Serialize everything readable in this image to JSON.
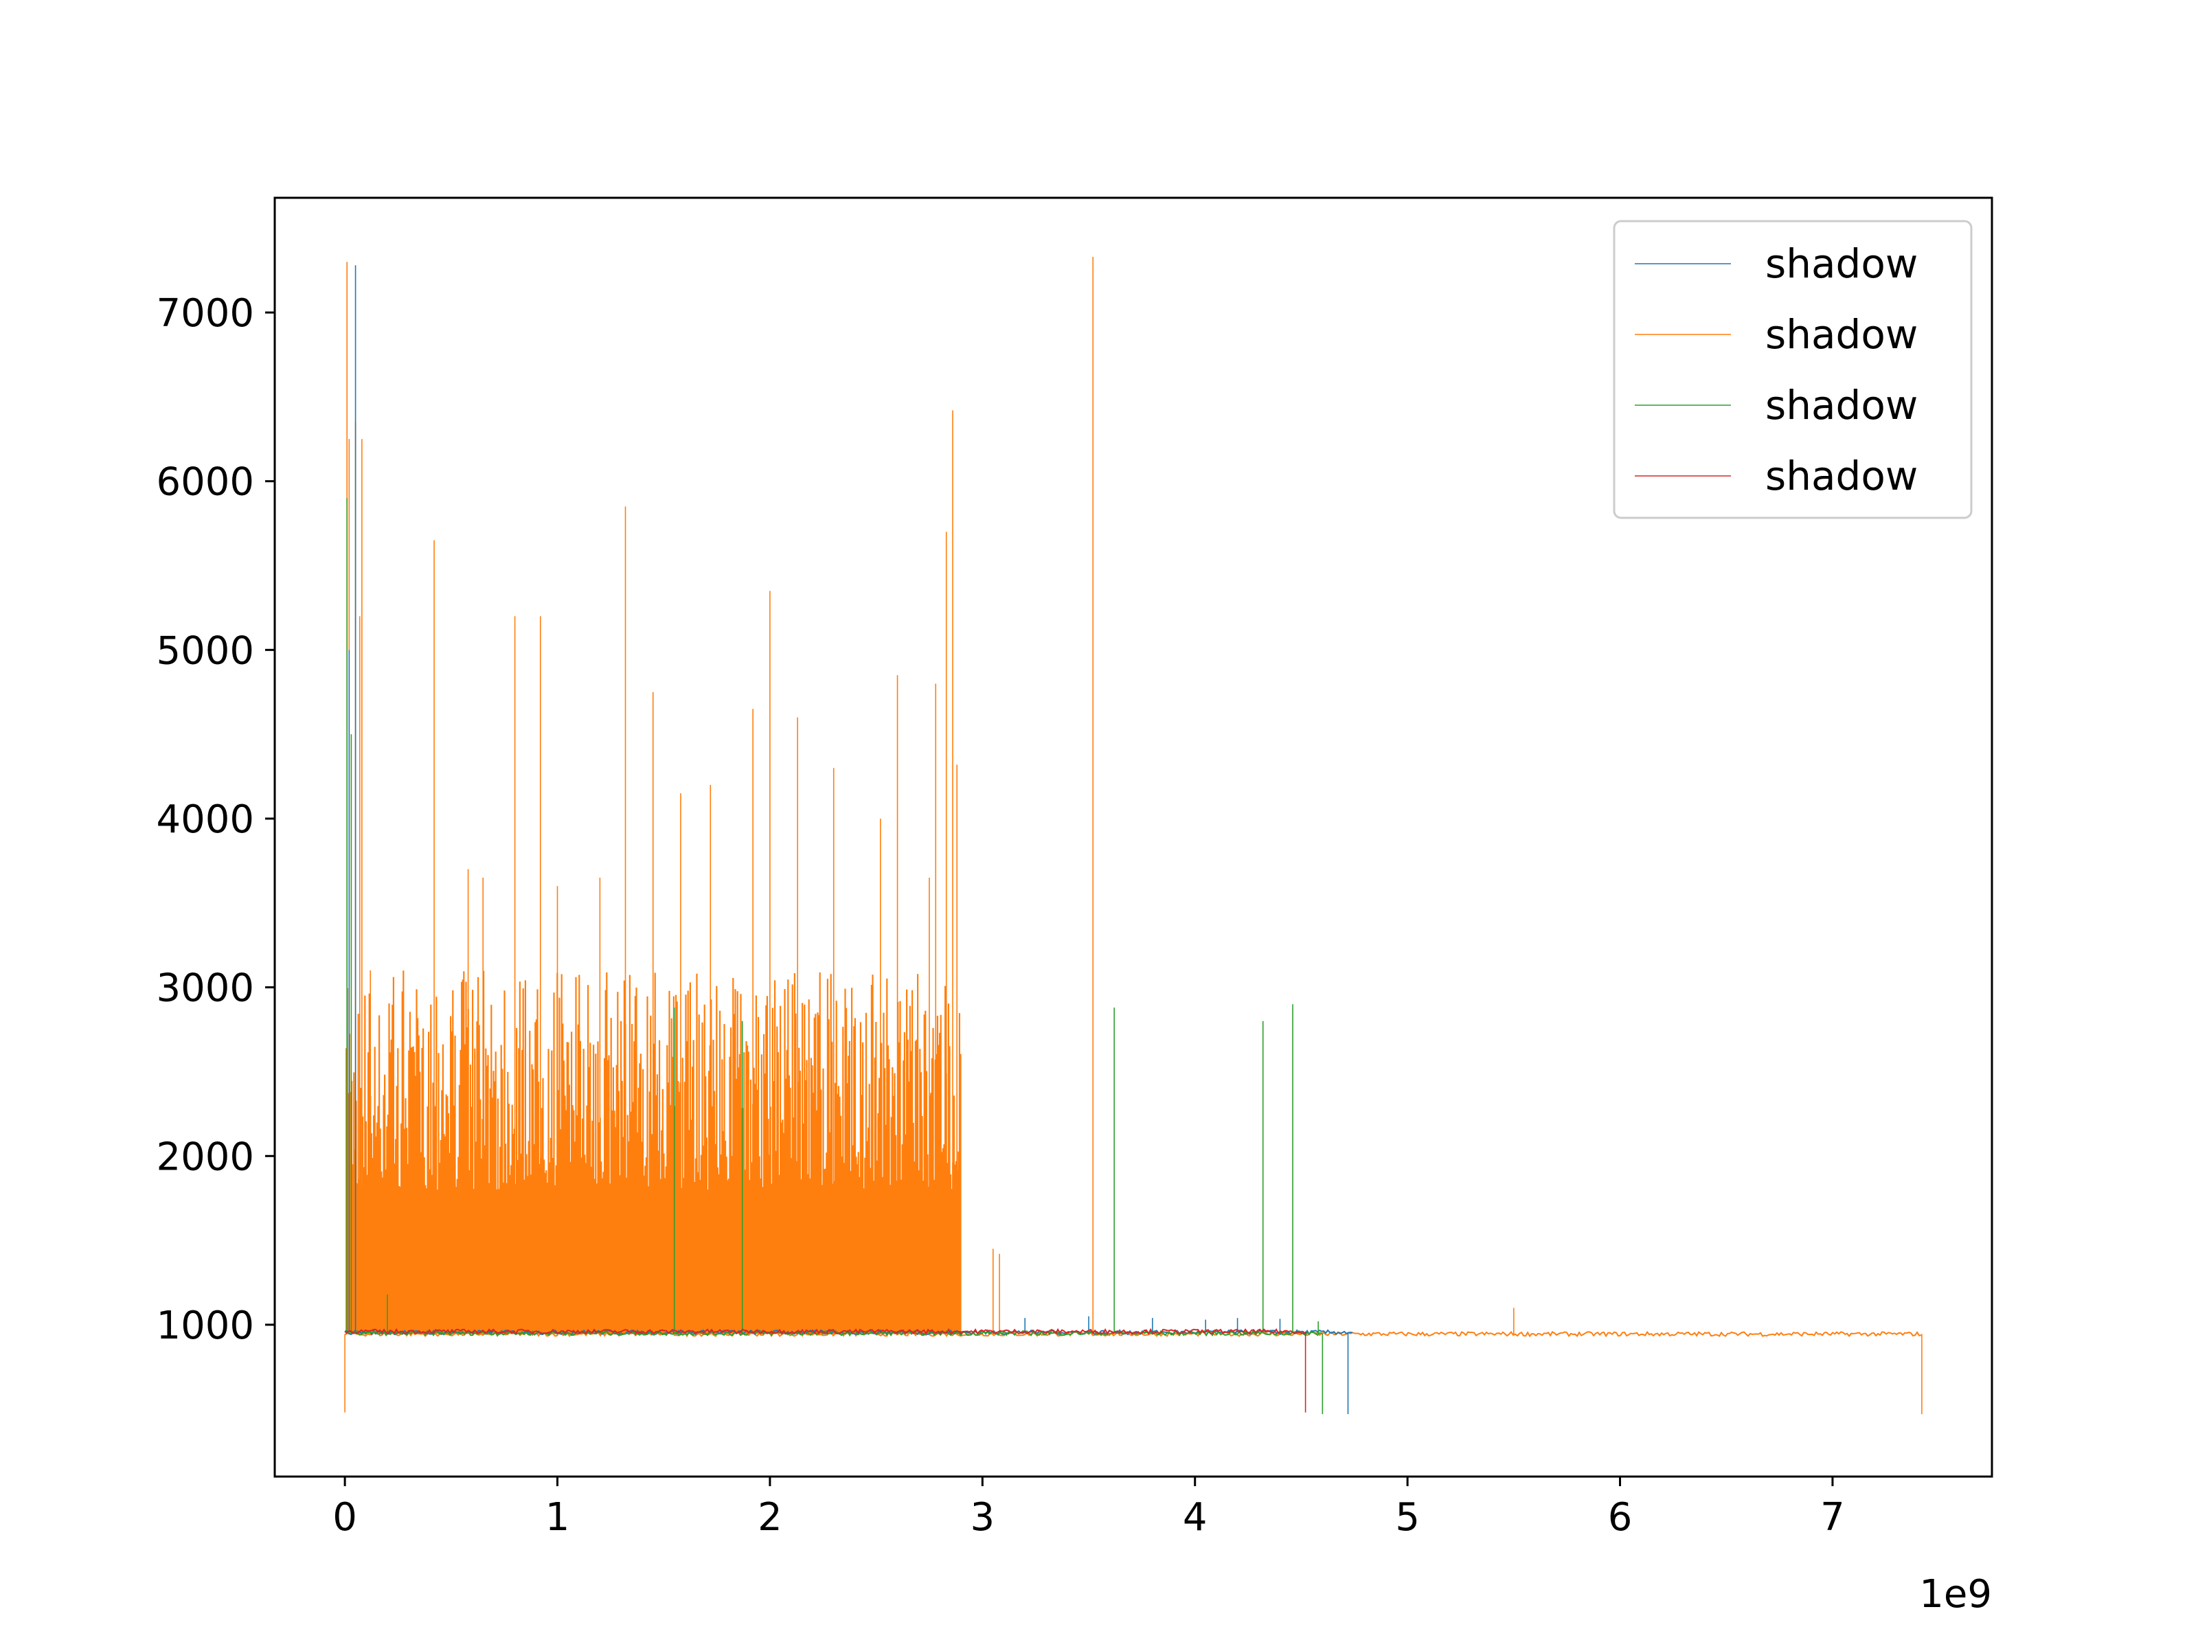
{
  "chart_data": {
    "type": "line",
    "title": "",
    "xlabel": "",
    "ylabel": "",
    "x_offset_label": "1e9",
    "xlim": [
      -0.33,
      7.75
    ],
    "ylim": [
      100,
      7680
    ],
    "x_ticks": [
      0,
      1,
      2,
      3,
      4,
      5,
      6,
      7
    ],
    "x_tick_labels": [
      "0",
      "1",
      "2",
      "3",
      "4",
      "5",
      "6",
      "7"
    ],
    "y_ticks": [
      1000,
      2000,
      3000,
      4000,
      5000,
      6000,
      7000
    ],
    "y_tick_labels": [
      "1000",
      "2000",
      "3000",
      "4000",
      "5000",
      "6000",
      "7000"
    ],
    "grid": false,
    "legend_position": "top-right",
    "series": [
      {
        "name": "shadow",
        "color": "#1f77b4",
        "x_range": [
          0,
          4.75
        ],
        "baseline": 955,
        "band_top": 955,
        "band_end": 0,
        "spikes": [
          [
            0.02,
            5000
          ],
          [
            0.05,
            7280
          ],
          [
            3.2,
            1040
          ],
          [
            3.5,
            1050
          ],
          [
            3.8,
            1040
          ],
          [
            4.05,
            1030
          ],
          [
            4.2,
            1040
          ],
          [
            4.4,
            1035
          ]
        ],
        "dips": [
          [
            4.72,
            470
          ]
        ]
      },
      {
        "name": "shadow",
        "color": "#ff7f0e",
        "x_range": [
          0,
          7.42
        ],
        "baseline": 945,
        "band_top": 2000,
        "band_end": 2.9,
        "spikes": [
          [
            0.01,
            7300
          ],
          [
            0.02,
            6250
          ],
          [
            0.05,
            6350
          ],
          [
            0.07,
            5200
          ],
          [
            0.08,
            6250
          ],
          [
            0.12,
            3100
          ],
          [
            0.42,
            5650
          ],
          [
            0.58,
            3700
          ],
          [
            0.65,
            3650
          ],
          [
            0.8,
            5200
          ],
          [
            0.92,
            5200
          ],
          [
            1.0,
            3600
          ],
          [
            1.2,
            3650
          ],
          [
            1.32,
            5850
          ],
          [
            1.45,
            4750
          ],
          [
            1.58,
            4150
          ],
          [
            1.72,
            4200
          ],
          [
            1.92,
            4650
          ],
          [
            2.0,
            5350
          ],
          [
            2.13,
            4600
          ],
          [
            2.3,
            4300
          ],
          [
            2.52,
            4000
          ],
          [
            2.6,
            4850
          ],
          [
            2.75,
            3650
          ],
          [
            2.78,
            4800
          ],
          [
            2.83,
            5700
          ],
          [
            2.86,
            6420
          ],
          [
            2.88,
            4320
          ],
          [
            3.05,
            1450
          ],
          [
            3.08,
            1420
          ],
          [
            3.52,
            7330
          ],
          [
            5.5,
            1100
          ]
        ],
        "dips": [
          [
            0.0,
            480
          ],
          [
            7.42,
            470
          ]
        ]
      },
      {
        "name": "shadow",
        "color": "#2ca02c",
        "x_range": [
          0,
          4.6
        ],
        "baseline": 950,
        "band_top": 950,
        "band_end": 0,
        "spikes": [
          [
            0.01,
            5900
          ],
          [
            0.03,
            4500
          ],
          [
            0.2,
            1180
          ],
          [
            1.55,
            2880
          ],
          [
            1.87,
            2800
          ],
          [
            3.62,
            2880
          ],
          [
            4.32,
            2800
          ],
          [
            4.46,
            2900
          ],
          [
            4.58,
            1020
          ]
        ],
        "dips": [
          [
            4.6,
            470
          ]
        ]
      },
      {
        "name": "shadow",
        "color": "#d62728",
        "x_range": [
          0,
          4.52
        ],
        "baseline": 960,
        "band_top": 960,
        "band_end": 0,
        "spikes": [],
        "dips": [
          [
            4.52,
            480
          ]
        ]
      }
    ]
  }
}
